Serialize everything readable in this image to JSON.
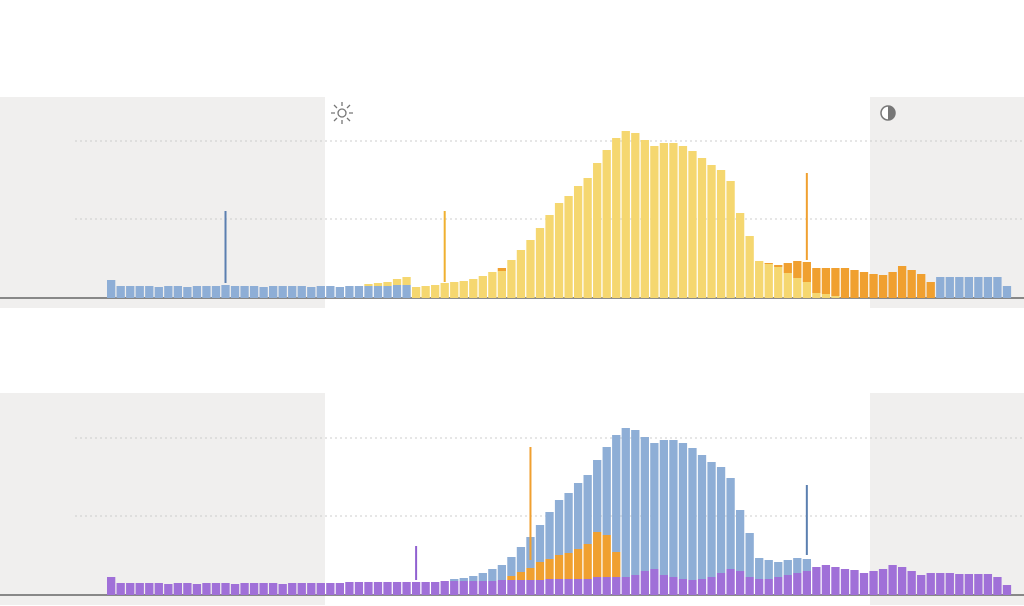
{
  "chart_data": [
    {
      "type": "bar",
      "stacked": true,
      "ylim": [
        0,
        170
      ],
      "yticks": [
        79,
        157
      ],
      "grid": true,
      "series": [
        {
          "color": "#8eaed6",
          "values": [
            18,
            12,
            12,
            12,
            12,
            11,
            12,
            12,
            11,
            12,
            12,
            12,
            13,
            12,
            12,
            12,
            11,
            12,
            12,
            12,
            12,
            11,
            12,
            12,
            11,
            12,
            12,
            12,
            12,
            12,
            13,
            13,
            0,
            0,
            0,
            0,
            0,
            0,
            0,
            0,
            0,
            0,
            0,
            0,
            0,
            0,
            0,
            0,
            0,
            0,
            0,
            0,
            0,
            0,
            0,
            0,
            0,
            0,
            0,
            0,
            0,
            0,
            0,
            0,
            0,
            0,
            0,
            0,
            0,
            0,
            0,
            0,
            0,
            0,
            0,
            0,
            0,
            0,
            0,
            0,
            0,
            0,
            0,
            0,
            0,
            0,
            0,
            21,
            21,
            21,
            21,
            21,
            21,
            21,
            12
          ]
        },
        {
          "color": "#f5d770",
          "values": [
            0,
            0,
            0,
            0,
            0,
            0,
            0,
            0,
            0,
            0,
            0,
            0,
            0,
            0,
            0,
            0,
            0,
            0,
            0,
            0,
            0,
            0,
            0,
            0,
            0,
            0,
            0,
            2,
            3,
            4,
            6,
            8,
            11,
            12,
            13,
            15,
            16,
            17,
            19,
            22,
            26,
            27,
            38,
            48,
            58,
            70,
            83,
            95,
            102,
            112,
            120,
            135,
            148,
            160,
            167,
            165,
            158,
            152,
            155,
            155,
            152,
            147,
            140,
            133,
            128,
            117,
            85,
            62,
            37,
            34,
            31,
            25,
            20,
            16,
            5,
            4,
            2,
            0,
            0,
            0,
            0,
            0,
            0,
            0,
            0,
            0,
            0,
            0,
            0,
            0,
            0,
            0,
            0,
            0,
            0
          ]
        },
        {
          "color": "#f0a030",
          "values": [
            0,
            0,
            0,
            0,
            0,
            0,
            0,
            0,
            0,
            0,
            0,
            0,
            0,
            0,
            0,
            0,
            0,
            0,
            0,
            0,
            0,
            0,
            0,
            0,
            0,
            0,
            0,
            0,
            0,
            0,
            0,
            0,
            0,
            0,
            0,
            0,
            0,
            0,
            0,
            0,
            0,
            3,
            0,
            0,
            0,
            0,
            0,
            0,
            0,
            0,
            0,
            0,
            0,
            0,
            0,
            0,
            0,
            0,
            0,
            0,
            0,
            0,
            0,
            0,
            0,
            0,
            0,
            0,
            0,
            1,
            2,
            10,
            17,
            20,
            25,
            26,
            28,
            30,
            28,
            26,
            24,
            23,
            26,
            32,
            28,
            24,
            16,
            0,
            0,
            0,
            0,
            0,
            0,
            0,
            0
          ]
        }
      ],
      "markers": [
        {
          "at": 12,
          "from": 15,
          "to": 87,
          "color": "#5b7fb0"
        },
        {
          "at": 35,
          "from": 16,
          "to": 87,
          "color": "#f0b030"
        },
        {
          "at": 73,
          "from": 38,
          "to": 125,
          "color": "#f0a030"
        }
      ]
    },
    {
      "type": "bar",
      "stacked": true,
      "ylim": [
        0,
        170
      ],
      "yticks": [
        79,
        157
      ],
      "grid": true,
      "series": [
        {
          "color": "#a070d8",
          "values": [
            18,
            12,
            12,
            12,
            12,
            12,
            11,
            12,
            12,
            11,
            12,
            12,
            12,
            11,
            12,
            12,
            12,
            12,
            11,
            12,
            12,
            12,
            12,
            12,
            12,
            13,
            13,
            13,
            13,
            13,
            13,
            13,
            13,
            13,
            13,
            14,
            14,
            14,
            14,
            14,
            14,
            15,
            15,
            15,
            15,
            15,
            16,
            16,
            16,
            16,
            16,
            18,
            18,
            18,
            18,
            20,
            24,
            26,
            20,
            18,
            16,
            15,
            16,
            18,
            22,
            26,
            24,
            18,
            16,
            16,
            18,
            20,
            22,
            24,
            28,
            30,
            28,
            26,
            25,
            22,
            24,
            26,
            30,
            28,
            24,
            20,
            22,
            22,
            22,
            21,
            21,
            21,
            21,
            18,
            10
          ]
        },
        {
          "color": "#f0a030",
          "values": [
            0,
            0,
            0,
            0,
            0,
            0,
            0,
            0,
            0,
            0,
            0,
            0,
            0,
            0,
            0,
            0,
            0,
            0,
            0,
            0,
            0,
            0,
            0,
            0,
            0,
            0,
            0,
            0,
            0,
            0,
            0,
            0,
            0,
            0,
            0,
            0,
            0,
            0,
            0,
            0,
            0,
            0,
            4,
            8,
            12,
            18,
            20,
            24,
            26,
            30,
            35,
            45,
            42,
            25,
            0,
            0,
            0,
            0,
            0,
            0,
            0,
            0,
            0,
            0,
            0,
            0,
            0,
            0,
            0,
            0,
            0,
            0,
            0,
            0,
            0,
            0,
            0,
            0,
            0,
            0,
            0,
            0,
            0,
            0,
            0,
            0,
            0,
            0,
            0,
            0,
            0,
            0,
            0,
            0,
            0
          ]
        },
        {
          "color": "#8eaed6",
          "values": [
            0,
            0,
            0,
            0,
            0,
            0,
            0,
            0,
            0,
            0,
            0,
            0,
            0,
            0,
            0,
            0,
            0,
            0,
            0,
            0,
            0,
            0,
            0,
            0,
            0,
            0,
            0,
            0,
            0,
            0,
            0,
            0,
            0,
            0,
            0,
            0,
            2,
            3,
            5,
            8,
            12,
            15,
            19,
            25,
            31,
            37,
            47,
            55,
            60,
            66,
            69,
            72,
            88,
            117,
            149,
            145,
            134,
            126,
            135,
            137,
            136,
            132,
            124,
            115,
            106,
            91,
            61,
            44,
            21,
            19,
            15,
            15,
            15,
            12,
            0,
            0,
            0,
            0,
            0,
            0,
            0,
            0,
            0,
            0,
            0,
            0,
            0,
            0,
            0,
            0,
            0,
            0,
            0,
            0,
            0
          ]
        }
      ],
      "markers": [
        {
          "at": 32,
          "from": 15,
          "to": 49,
          "color": "#9060d0"
        },
        {
          "at": 44,
          "from": 35,
          "to": 148,
          "color": "#f0a030"
        },
        {
          "at": 73,
          "from": 40,
          "to": 110,
          "color": "#5b7fb0"
        }
      ]
    }
  ]
}
